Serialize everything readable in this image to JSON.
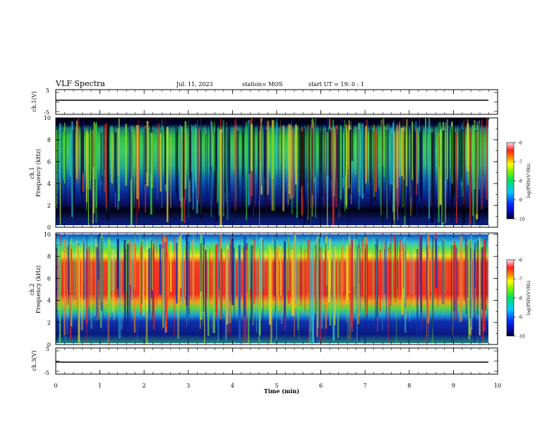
{
  "header": {
    "title": "VLF Spectra",
    "date": "Jul. 11, 2023",
    "station": "station= MOS",
    "start": "start UT = 19: 0 : 1"
  },
  "chart_data": [
    {
      "type": "line",
      "ylabel": "ch.1(V)",
      "ylim": [
        -5,
        5
      ],
      "yticks": [
        "5",
        "-5"
      ],
      "series": [
        {
          "x": [
            0,
            9.83
          ],
          "values": [
            0,
            0
          ]
        }
      ]
    },
    {
      "type": "heatmap",
      "ylabel": "ch.1\nFrequency (kHz)",
      "ylim": [
        0,
        10
      ],
      "yticks": [
        "0",
        "2",
        "4",
        "6",
        "8",
        "10"
      ],
      "colorbar": {
        "label": "log(PSD)(V²/Hz)",
        "range": [
          -10,
          -6
        ],
        "ticks": [
          "-6",
          "-7",
          "-8",
          "-9",
          "-10"
        ]
      }
    },
    {
      "type": "heatmap",
      "ylabel": "ch.2\nFrequency (kHz)",
      "ylim": [
        0,
        10
      ],
      "yticks": [
        "0",
        "2",
        "4",
        "6",
        "8",
        "10"
      ],
      "colorbar": {
        "label": "log(PSD)(V²/Hz)",
        "range": [
          -10,
          -6
        ],
        "ticks": [
          "-6",
          "-7",
          "-8",
          "-9",
          "-10"
        ]
      }
    },
    {
      "type": "line",
      "ylabel": "ch.3(V)",
      "ylim": [
        -5,
        5
      ],
      "yticks": [
        "5",
        "-5"
      ],
      "series": [
        {
          "x": [
            0,
            9.83
          ],
          "values": [
            0,
            0
          ]
        }
      ]
    }
  ],
  "xaxis": {
    "label": "Time (min)",
    "range": [
      0,
      10
    ],
    "ticks": [
      "0",
      "1",
      "2",
      "3",
      "4",
      "5",
      "6",
      "7",
      "8",
      "9",
      "10"
    ]
  }
}
